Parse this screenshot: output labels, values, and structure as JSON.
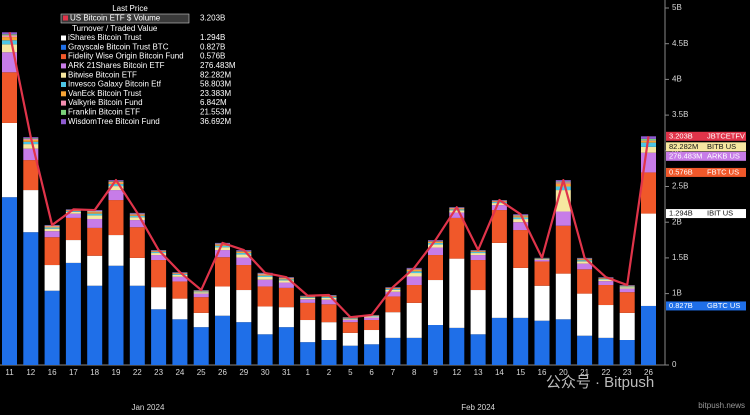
{
  "chart_data": {
    "type": "bar",
    "legend_title": "Last Price",
    "legend_subtitle": "Turnover / Traded Value",
    "categories": [
      "11",
      "12",
      "16",
      "17",
      "18",
      "19",
      "22",
      "23",
      "24",
      "25",
      "26",
      "29",
      "30",
      "31",
      "1",
      "2",
      "5",
      "6",
      "7",
      "8",
      "9",
      "12",
      "13",
      "14",
      "15",
      "16",
      "20",
      "21",
      "22",
      "23",
      "26"
    ],
    "months": [
      {
        "label": "Jan 2024",
        "from": 0,
        "to": 13
      },
      {
        "label": "Feb 2024",
        "from": 14,
        "to": 30
      }
    ],
    "ylim": [
      0,
      5
    ],
    "yticks": [
      {
        "value": 0,
        "label": "0"
      },
      {
        "value": 1,
        "label": "1B"
      },
      {
        "value": 1.5,
        "label": "1.5B"
      },
      {
        "value": 2,
        "label": "2B"
      },
      {
        "value": 2.5,
        "label": "2.5B"
      },
      {
        "value": 3,
        "label": "3B"
      },
      {
        "value": 3.5,
        "label": "3.5B"
      },
      {
        "value": 4,
        "label": "4B"
      },
      {
        "value": 4.5,
        "label": "4.5B"
      },
      {
        "value": 5,
        "label": "5B"
      }
    ],
    "line": {
      "name": "US Bitcoin ETF $ Volume",
      "color": "#e0344a",
      "last_label": "3.203B",
      "tag": "JBTCETFV",
      "values": [
        4.66,
        3.19,
        1.96,
        2.18,
        2.17,
        2.59,
        2.13,
        1.61,
        1.3,
        1.05,
        1.71,
        1.61,
        1.29,
        1.23,
        0.97,
        0.98,
        0.67,
        0.7,
        1.09,
        1.36,
        1.75,
        2.21,
        1.61,
        2.31,
        2.11,
        1.5,
        2.59,
        1.5,
        1.23,
        1.12,
        3.203
      ]
    },
    "series": [
      {
        "name": "iShares Bitcoin Trust",
        "color": "#ffffff",
        "last_label": "1.294B",
        "tag": "IBIT US",
        "values": [
          1.04,
          0.59,
          0.36,
          0.32,
          0.42,
          0.43,
          0.39,
          0.31,
          0.29,
          0.2,
          0.41,
          0.45,
          0.39,
          0.28,
          0.31,
          0.25,
          0.18,
          0.2,
          0.36,
          0.49,
          0.63,
          0.97,
          0.62,
          1.05,
          0.7,
          0.49,
          0.64,
          0.59,
          0.46,
          0.38,
          1.294
        ]
      },
      {
        "name": "Grayscale Bitcoin Trust BTC",
        "color": "#1f6fe8",
        "last_label": "0.827B",
        "tag": "GBTC US",
        "values": [
          2.35,
          1.86,
          1.04,
          1.43,
          1.11,
          1.39,
          1.11,
          0.78,
          0.64,
          0.53,
          0.69,
          0.6,
          0.43,
          0.53,
          0.32,
          0.35,
          0.27,
          0.29,
          0.38,
          0.38,
          0.56,
          0.52,
          0.43,
          0.66,
          0.66,
          0.62,
          0.64,
          0.41,
          0.38,
          0.35,
          0.827
        ]
      },
      {
        "name": "Fidelity Wise Origin Bitcoin Fund",
        "color": "#f0582a",
        "last_label": "0.576B",
        "tag": "FBTC US",
        "values": [
          0.71,
          0.42,
          0.39,
          0.31,
          0.39,
          0.49,
          0.43,
          0.38,
          0.24,
          0.22,
          0.41,
          0.35,
          0.28,
          0.27,
          0.24,
          0.25,
          0.15,
          0.14,
          0.22,
          0.25,
          0.35,
          0.57,
          0.42,
          0.46,
          0.53,
          0.34,
          0.67,
          0.34,
          0.28,
          0.29,
          0.576
        ]
      },
      {
        "name": "ARK 21Shares Bitcoin ETF",
        "color": "#c77ce8",
        "last_label": "276.483M",
        "tag": "ARKB US",
        "values": [
          0.28,
          0.16,
          0.085,
          0.06,
          0.125,
          0.14,
          0.1,
          0.07,
          0.065,
          0.05,
          0.1,
          0.105,
          0.095,
          0.075,
          0.05,
          0.065,
          0.035,
          0.035,
          0.065,
          0.12,
          0.105,
          0.075,
          0.07,
          0.07,
          0.11,
          0.025,
          0.2,
          0.08,
          0.055,
          0.05,
          0.276483
        ]
      },
      {
        "name": "Bitwise Bitcoin ETF",
        "color": "#f6e7a0",
        "last_label": "82.282M",
        "tag": "BITB US",
        "values": [
          0.112,
          0.064,
          0.034,
          0.024,
          0.05,
          0.056,
          0.04,
          0.028,
          0.026,
          0.02,
          0.04,
          0.042,
          0.038,
          0.03,
          0.02,
          0.026,
          0.014,
          0.014,
          0.026,
          0.048,
          0.042,
          0.03,
          0.028,
          0.028,
          0.044,
          0.01,
          0.3,
          0.032,
          0.022,
          0.02,
          0.082282
        ]
      },
      {
        "name": "Invesco Galaxy Bitcoin Etf",
        "color": "#4cc6e6",
        "last_label": "58.803M",
        "values": [
          0.056,
          0.032,
          0.017,
          0.012,
          0.025,
          0.028,
          0.02,
          0.014,
          0.013,
          0.01,
          0.02,
          0.021,
          0.019,
          0.015,
          0.01,
          0.013,
          0.007,
          0.007,
          0.013,
          0.024,
          0.021,
          0.015,
          0.014,
          0.014,
          0.022,
          0.005,
          0.05,
          0.016,
          0.011,
          0.01,
          0.058803
        ]
      },
      {
        "name": "VanEck Bitcoin Trust",
        "color": "#f7a435",
        "last_label": "23.383M",
        "values": [
          0.045,
          0.026,
          0.014,
          0.01,
          0.02,
          0.022,
          0.016,
          0.011,
          0.01,
          0.008,
          0.016,
          0.017,
          0.015,
          0.012,
          0.008,
          0.01,
          0.006,
          0.006,
          0.01,
          0.019,
          0.017,
          0.012,
          0.011,
          0.011,
          0.018,
          0.004,
          0.04,
          0.013,
          0.009,
          0.008,
          0.023383
        ]
      },
      {
        "name": "Valkyrie Bitcoin Fund",
        "color": "#f48fb1",
        "last_label": "6.842M",
        "values": [
          0.022,
          0.013,
          0.007,
          0.005,
          0.01,
          0.011,
          0.008,
          0.006,
          0.005,
          0.004,
          0.008,
          0.008,
          0.008,
          0.006,
          0.004,
          0.005,
          0.003,
          0.003,
          0.005,
          0.01,
          0.008,
          0.006,
          0.006,
          0.006,
          0.009,
          0.002,
          0.02,
          0.006,
          0.004,
          0.004,
          0.006842
        ]
      },
      {
        "name": "Franklin Bitcoin ETF",
        "color": "#7ad07a",
        "last_label": "21.553M",
        "values": [
          0.017,
          0.01,
          0.005,
          0.004,
          0.008,
          0.008,
          0.006,
          0.004,
          0.004,
          0.003,
          0.006,
          0.006,
          0.006,
          0.005,
          0.003,
          0.004,
          0.002,
          0.002,
          0.004,
          0.007,
          0.006,
          0.005,
          0.004,
          0.004,
          0.007,
          0.002,
          0.01,
          0.005,
          0.003,
          0.003,
          0.021553
        ]
      },
      {
        "name": "WisdomTree Bitcoin Fund",
        "color": "#8e5bd0",
        "last_label": "36.692M",
        "values": [
          0.028,
          0.016,
          0.009,
          0.006,
          0.013,
          0.014,
          0.01,
          0.007,
          0.007,
          0.005,
          0.01,
          0.011,
          0.01,
          0.008,
          0.005,
          0.007,
          0.004,
          0.004,
          0.007,
          0.012,
          0.011,
          0.008,
          0.007,
          0.007,
          0.011,
          0.003,
          0.02,
          0.008,
          0.006,
          0.005,
          0.036692
        ]
      }
    ]
  },
  "watermark": {
    "account": "公众号 · Bitpush",
    "site": "bitpush.news"
  }
}
